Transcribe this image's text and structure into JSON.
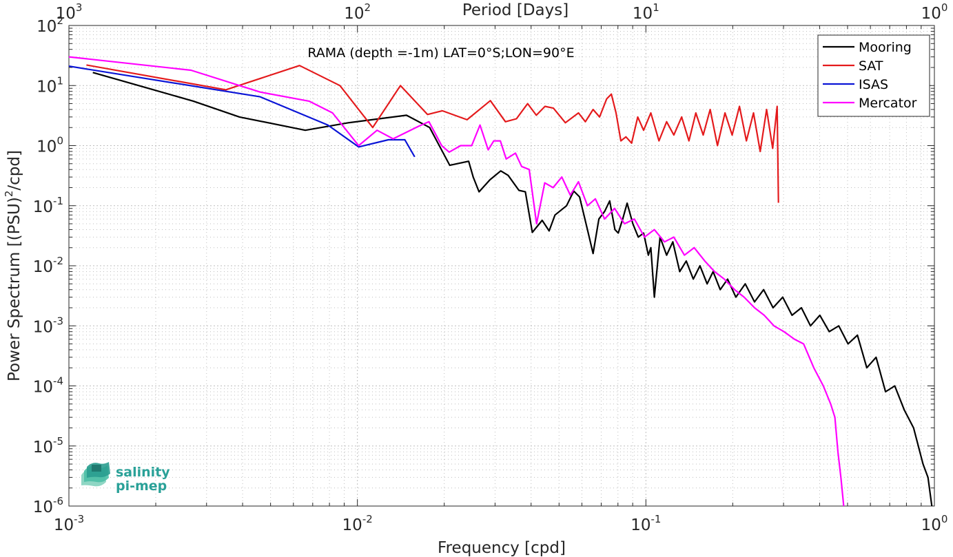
{
  "chart_data": {
    "type": "line",
    "title": "RAMA (depth =-1m) LAT=0°S;LON=90°E",
    "xlabel": "Frequency [cpd]",
    "ylabel_main": "Power Spectrum [(PSU)",
    "ylabel_sup": "2",
    "ylabel_tail": "/cpd]",
    "top_xlabel": "Period [Days]",
    "xscale": "log",
    "yscale": "log",
    "xlim": [
      0.001,
      1
    ],
    "ylim": [
      1e-06,
      100
    ],
    "grid": true,
    "legend_position": "top-right",
    "x_ticks": [
      {
        "value": 0.001,
        "base": "10",
        "exp": "-3"
      },
      {
        "value": 0.01,
        "base": "10",
        "exp": "-2"
      },
      {
        "value": 0.1,
        "base": "10",
        "exp": "-1"
      },
      {
        "value": 1,
        "base": "10",
        "exp": "0"
      }
    ],
    "top_ticks": [
      {
        "value": 0.001,
        "base": "10",
        "exp": "3"
      },
      {
        "value": 0.01,
        "base": "10",
        "exp": "2"
      },
      {
        "value": 0.1,
        "base": "10",
        "exp": "1"
      },
      {
        "value": 1,
        "base": "10",
        "exp": "0"
      }
    ],
    "y_ticks": [
      {
        "value": 1e-06,
        "base": "10",
        "exp": "-6"
      },
      {
        "value": 1e-05,
        "base": "10",
        "exp": "-5"
      },
      {
        "value": 0.0001,
        "base": "10",
        "exp": "-4"
      },
      {
        "value": 0.001,
        "base": "10",
        "exp": "-3"
      },
      {
        "value": 0.01,
        "base": "10",
        "exp": "-2"
      },
      {
        "value": 0.1,
        "base": "10",
        "exp": "-1"
      },
      {
        "value": 1,
        "base": "10",
        "exp": "0"
      },
      {
        "value": 10,
        "base": "10",
        "exp": "1"
      },
      {
        "value": 100,
        "base": "10",
        "exp": "2"
      }
    ],
    "series": [
      {
        "name": "Mooring",
        "color": "#000000",
        "points": [
          [
            0.00121,
            16.5
          ],
          [
            0.0027,
            5.5
          ],
          [
            0.0039,
            3.0
          ],
          [
            0.0066,
            1.8
          ],
          [
            0.0093,
            2.4
          ],
          [
            0.0148,
            3.2
          ],
          [
            0.0178,
            2.0
          ],
          [
            0.0209,
            0.47
          ],
          [
            0.0243,
            0.55
          ],
          [
            0.0252,
            0.3
          ],
          [
            0.0264,
            0.17
          ],
          [
            0.0288,
            0.27
          ],
          [
            0.0314,
            0.38
          ],
          [
            0.0333,
            0.32
          ],
          [
            0.0363,
            0.18
          ],
          [
            0.0382,
            0.17
          ],
          [
            0.0404,
            0.036
          ],
          [
            0.0437,
            0.057
          ],
          [
            0.0462,
            0.038
          ],
          [
            0.0484,
            0.07
          ],
          [
            0.0531,
            0.1
          ],
          [
            0.0562,
            0.175
          ],
          [
            0.0589,
            0.14
          ],
          [
            0.0627,
            0.04
          ],
          [
            0.0656,
            0.016
          ],
          [
            0.0687,
            0.06
          ],
          [
            0.0719,
            0.08
          ],
          [
            0.0749,
            0.12
          ],
          [
            0.0781,
            0.04
          ],
          [
            0.0802,
            0.035
          ],
          [
            0.0831,
            0.06
          ],
          [
            0.0861,
            0.11
          ],
          [
            0.0901,
            0.05
          ],
          [
            0.0941,
            0.03
          ],
          [
            0.0982,
            0.035
          ],
          [
            0.102,
            0.015
          ],
          [
            0.104,
            0.02
          ],
          [
            0.107,
            0.003
          ],
          [
            0.112,
            0.03
          ],
          [
            0.118,
            0.015
          ],
          [
            0.124,
            0.025
          ],
          [
            0.131,
            0.008
          ],
          [
            0.138,
            0.012
          ],
          [
            0.146,
            0.006
          ],
          [
            0.154,
            0.01
          ],
          [
            0.163,
            0.005
          ],
          [
            0.171,
            0.008
          ],
          [
            0.181,
            0.004
          ],
          [
            0.192,
            0.006
          ],
          [
            0.205,
            0.003
          ],
          [
            0.221,
            0.005
          ],
          [
            0.238,
            0.0025
          ],
          [
            0.256,
            0.004
          ],
          [
            0.276,
            0.002
          ],
          [
            0.298,
            0.003
          ],
          [
            0.321,
            0.0015
          ],
          [
            0.346,
            0.002
          ],
          [
            0.372,
            0.001
          ],
          [
            0.401,
            0.0015
          ],
          [
            0.432,
            0.0008
          ],
          [
            0.466,
            0.001
          ],
          [
            0.502,
            0.0005
          ],
          [
            0.541,
            0.0007
          ],
          [
            0.583,
            0.0002
          ],
          [
            0.628,
            0.0003
          ],
          [
            0.677,
            8e-05
          ],
          [
            0.729,
            0.0001
          ],
          [
            0.786,
            4e-05
          ],
          [
            0.847,
            2e-05
          ],
          [
            0.913,
            5e-06
          ],
          [
            0.95,
            3e-06
          ],
          [
            0.98,
            1e-06
          ]
        ]
      },
      {
        "name": "SAT",
        "color": "#e41a1c",
        "points": [
          [
            0.00115,
            22.0
          ],
          [
            0.0035,
            8.5
          ],
          [
            0.0063,
            21.5
          ],
          [
            0.0087,
            10.0
          ],
          [
            0.0113,
            2.0
          ],
          [
            0.0141,
            10.0
          ],
          [
            0.0175,
            3.3
          ],
          [
            0.0197,
            3.8
          ],
          [
            0.024,
            2.7
          ],
          [
            0.0289,
            5.6
          ],
          [
            0.0326,
            2.5
          ],
          [
            0.0356,
            2.8
          ],
          [
            0.0389,
            5.0
          ],
          [
            0.0417,
            3.2
          ],
          [
            0.0447,
            4.5
          ],
          [
            0.0478,
            4.2
          ],
          [
            0.0526,
            2.4
          ],
          [
            0.0584,
            3.5
          ],
          [
            0.0617,
            2.5
          ],
          [
            0.0656,
            4.0
          ],
          [
            0.0691,
            3.0
          ],
          [
            0.0731,
            6.0
          ],
          [
            0.0759,
            7.2
          ],
          [
            0.0788,
            3.5
          ],
          [
            0.0819,
            1.2
          ],
          [
            0.0853,
            1.4
          ],
          [
            0.0892,
            1.1
          ],
          [
            0.0937,
            3.0
          ],
          [
            0.0982,
            1.8
          ],
          [
            0.104,
            3.5
          ],
          [
            0.111,
            1.2
          ],
          [
            0.118,
            2.5
          ],
          [
            0.125,
            1.5
          ],
          [
            0.133,
            3.0
          ],
          [
            0.141,
            1.2
          ],
          [
            0.149,
            3.5
          ],
          [
            0.158,
            1.5
          ],
          [
            0.167,
            4.0
          ],
          [
            0.177,
            1.0
          ],
          [
            0.188,
            3.5
          ],
          [
            0.199,
            1.5
          ],
          [
            0.211,
            4.5
          ],
          [
            0.223,
            1.2
          ],
          [
            0.236,
            3.5
          ],
          [
            0.249,
            0.8
          ],
          [
            0.262,
            4.0
          ],
          [
            0.275,
            0.9
          ],
          [
            0.285,
            4.5
          ],
          [
            0.288,
            0.112
          ]
        ]
      },
      {
        "name": "ISAS",
        "color": "#0a14d6",
        "points": [
          [
            0.001,
            21.0
          ],
          [
            0.0046,
            6.5
          ],
          [
            0.0079,
            2.2
          ],
          [
            0.0101,
            0.95
          ],
          [
            0.0128,
            1.25
          ],
          [
            0.0146,
            1.25
          ],
          [
            0.0158,
            0.65
          ]
        ]
      },
      {
        "name": "Mercator",
        "color": "#ff00ff",
        "points": [
          [
            0.001,
            30.0
          ],
          [
            0.00265,
            18.0
          ],
          [
            0.0046,
            7.8
          ],
          [
            0.0068,
            5.5
          ],
          [
            0.0082,
            3.5
          ],
          [
            0.0101,
            1.0
          ],
          [
            0.0117,
            1.8
          ],
          [
            0.0133,
            1.3
          ],
          [
            0.0163,
            2.1
          ],
          [
            0.0177,
            2.5
          ],
          [
            0.0196,
            1.0
          ],
          [
            0.0208,
            0.78
          ],
          [
            0.0228,
            1.0
          ],
          [
            0.0249,
            1.0
          ],
          [
            0.0266,
            2.2
          ],
          [
            0.0284,
            0.85
          ],
          [
            0.0297,
            1.2
          ],
          [
            0.0313,
            1.2
          ],
          [
            0.0328,
            0.6
          ],
          [
            0.0353,
            0.75
          ],
          [
            0.0371,
            0.45
          ],
          [
            0.0394,
            0.4
          ],
          [
            0.0418,
            0.05
          ],
          [
            0.0446,
            0.24
          ],
          [
            0.0477,
            0.2
          ],
          [
            0.0511,
            0.3
          ],
          [
            0.0547,
            0.15
          ],
          [
            0.0584,
            0.25
          ],
          [
            0.0627,
            0.1
          ],
          [
            0.0668,
            0.13
          ],
          [
            0.0719,
            0.06
          ],
          [
            0.0779,
            0.09
          ],
          [
            0.0843,
            0.05
          ],
          [
            0.0912,
            0.06
          ],
          [
            0.0989,
            0.03
          ],
          [
            0.107,
            0.04
          ],
          [
            0.116,
            0.025
          ],
          [
            0.125,
            0.03
          ],
          [
            0.136,
            0.015
          ],
          [
            0.147,
            0.02
          ],
          [
            0.16,
            0.012
          ],
          [
            0.173,
            0.008
          ],
          [
            0.187,
            0.006
          ],
          [
            0.203,
            0.004
          ],
          [
            0.219,
            0.003
          ],
          [
            0.238,
            0.002
          ],
          [
            0.257,
            0.0015
          ],
          [
            0.278,
            0.001
          ],
          [
            0.301,
            0.0008
          ],
          [
            0.327,
            0.0006
          ],
          [
            0.352,
            0.0005
          ],
          [
            0.382,
            0.0002
          ],
          [
            0.412,
            0.0001
          ],
          [
            0.437,
            5e-05
          ],
          [
            0.452,
            3e-05
          ],
          [
            0.463,
            8e-06
          ],
          [
            0.474,
            3e-06
          ],
          [
            0.485,
            1e-06
          ]
        ]
      }
    ]
  },
  "logo": {
    "line1": "salinity",
    "line2": "pi-mep"
  }
}
